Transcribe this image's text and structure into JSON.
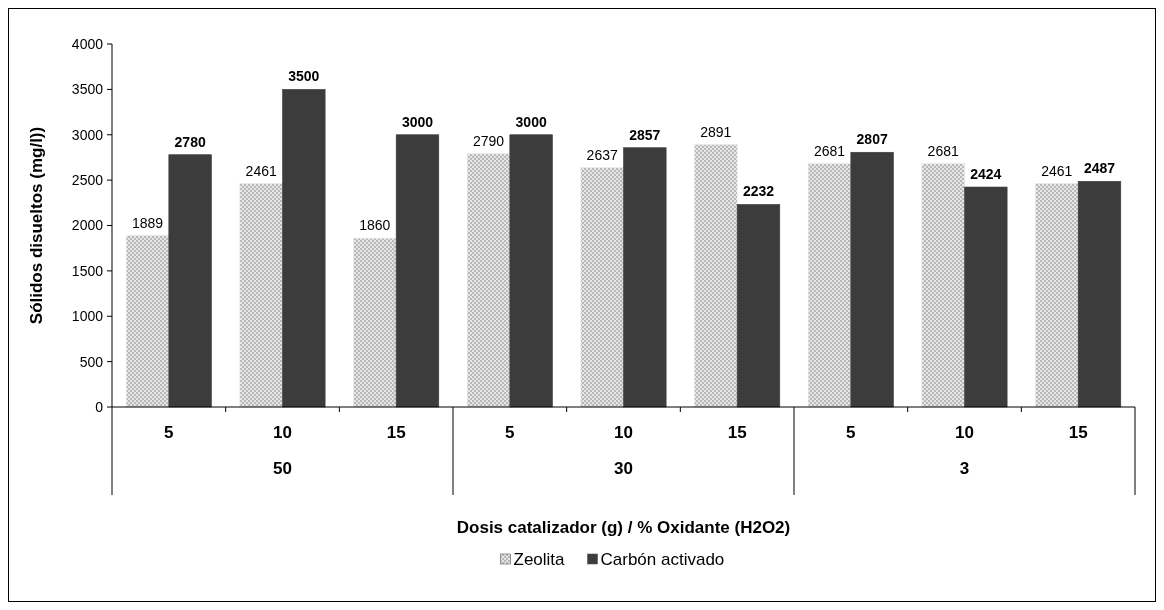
{
  "chart_data": {
    "type": "bar",
    "ylabel": "Sólidos disueltos (mg/l))",
    "xlabel": "Dosis catalizador (g) / % Oxidante (H2O2)",
    "categories": [
      "5",
      "10",
      "15",
      "5",
      "10",
      "15",
      "5",
      "10",
      "15"
    ],
    "annotations": [
      "50",
      "30",
      "3"
    ],
    "series": [
      {
        "name": "Zeolita",
        "color": "#e6e6e6",
        "values": [
          1889,
          2461,
          1860,
          2790,
          2637,
          2891,
          2681,
          2681,
          2461
        ]
      },
      {
        "name": "Carbón activado",
        "color": "#3c3c3c",
        "values": [
          2780,
          3500,
          3000,
          3000,
          2857,
          2232,
          2807,
          2424,
          2487
        ]
      }
    ],
    "ylim": [
      0,
      4000
    ],
    "yticks": [
      0,
      500,
      1000,
      1500,
      2000,
      2500,
      3000,
      3500,
      4000
    ],
    "data_labels": true,
    "legend": "bottom",
    "grid": false
  }
}
